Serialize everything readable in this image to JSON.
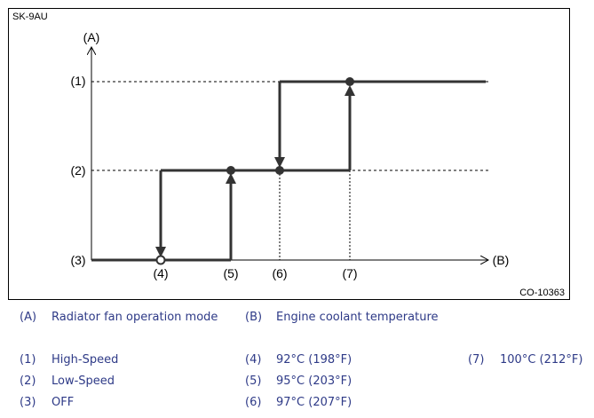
{
  "figure": {
    "model": "SK-9AU",
    "code": "CO-10363",
    "y_axis_label": "(A)",
    "x_axis_label": "(B)",
    "y_ticks": [
      "(1)",
      "(2)",
      "(3)"
    ],
    "x_ticks": [
      "(4)",
      "(5)",
      "(6)",
      "(7)"
    ]
  },
  "legend": {
    "A": {
      "key": "(A)",
      "text": "Radiator fan operation mode"
    },
    "B": {
      "key": "(B)",
      "text": "Engine coolant temperature"
    },
    "items": [
      {
        "key": "(1)",
        "text": "High-Speed"
      },
      {
        "key": "(2)",
        "text": "Low-Speed"
      },
      {
        "key": "(3)",
        "text": "OFF"
      },
      {
        "key": "(4)",
        "text": "92°C (198°F)"
      },
      {
        "key": "(5)",
        "text": "95°C (203°F)"
      },
      {
        "key": "(6)",
        "text": "97°C (207°F)"
      },
      {
        "key": "(7)",
        "text": "100°C (212°F)"
      }
    ]
  },
  "colors": {
    "legend_text": "#2e3a87",
    "line": "#333333"
  }
}
